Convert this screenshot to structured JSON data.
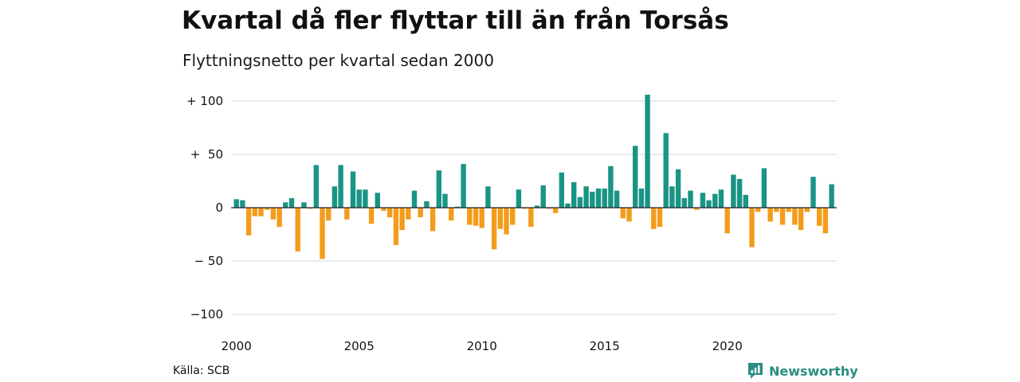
{
  "header": {
    "title": "Kvartal då fler flyttar till än från Torsås",
    "subtitle": "Flyttningsnetto per kvartal sedan 2000"
  },
  "footer": {
    "source": "Källa: SCB",
    "brand": "Newsworthy",
    "brand_icon": "newsworthy-logo-icon"
  },
  "colors": {
    "positive": "#1a9485",
    "negative": "#f39c1b",
    "grid": "#dddddd",
    "zero_line": "#222222",
    "brand": "#2a8c82"
  },
  "chart_data": {
    "type": "bar",
    "title": "Kvartal då fler flyttar till än från Torsås",
    "subtitle": "Flyttningsnetto per kvartal sedan 2000",
    "ylim": [
      -100,
      100
    ],
    "yticks": [
      100,
      50,
      0,
      -50,
      -100
    ],
    "ytick_labels": [
      "+ 100",
      "+  50",
      "0",
      "− 50",
      "−100"
    ],
    "xticks": [
      2000,
      2005,
      2010,
      2015,
      2020
    ],
    "xtick_labels": [
      "2000",
      "2005",
      "2010",
      "2015",
      "2020"
    ],
    "grid": true,
    "start_year": 2000,
    "quarters_per_year": 4,
    "values": [
      8,
      7,
      -26,
      -8,
      -8,
      -2,
      -11,
      -18,
      5,
      9,
      -41,
      5,
      -1,
      40,
      -48,
      -12,
      20,
      40,
      -11,
      34,
      17,
      17,
      -15,
      14,
      -3,
      -9,
      -35,
      -21,
      -11,
      16,
      -9,
      6,
      -22,
      35,
      13,
      -12,
      1,
      41,
      -16,
      -17,
      -19,
      20,
      -39,
      -20,
      -25,
      -16,
      17,
      -1,
      -18,
      2,
      21,
      -1,
      -5,
      33,
      4,
      24,
      10,
      20,
      15,
      18,
      18,
      39,
      16,
      -10,
      -13,
      58,
      18,
      106,
      -20,
      -18,
      70,
      20,
      36,
      9,
      16,
      -2,
      14,
      7,
      13,
      17,
      -24,
      31,
      27,
      12,
      -37,
      -4,
      37,
      -13,
      -4,
      -16,
      -4,
      -16,
      -21,
      -4,
      29,
      -17,
      -24,
      22
    ]
  }
}
